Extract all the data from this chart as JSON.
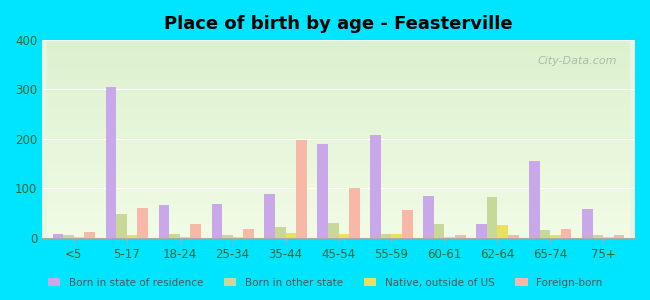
{
  "title": "Place of birth by age - Feasterville",
  "categories": [
    "<5",
    "5-17",
    "18-24",
    "25-34",
    "35-44",
    "45-54",
    "55-59",
    "60-61",
    "62-64",
    "65-74",
    "75+"
  ],
  "series": {
    "Born in state of residence": [
      8,
      305,
      65,
      68,
      88,
      190,
      208,
      85,
      28,
      155,
      57
    ],
    "Born in other state": [
      5,
      48,
      8,
      5,
      22,
      30,
      8,
      28,
      82,
      15,
      5
    ],
    "Native, outside of US": [
      2,
      5,
      2,
      2,
      10,
      8,
      8,
      2,
      25,
      5,
      2
    ],
    "Foreign-born": [
      12,
      60,
      28,
      18,
      198,
      100,
      55,
      5,
      5,
      18,
      5
    ]
  },
  "colors": {
    "Born in state of residence": "#c8a8e8",
    "Born in other state": "#c8d898",
    "Native, outside of US": "#e8e060",
    "Foreign-born": "#f8b8a8"
  },
  "ylim": [
    0,
    400
  ],
  "yticks": [
    0,
    100,
    200,
    300,
    400
  ],
  "bar_width": 0.2,
  "background_top": "#e8f5e0",
  "background_bottom": "#f0fde8",
  "figure_bg": "#00e5ff",
  "watermark": "City-Data.com"
}
